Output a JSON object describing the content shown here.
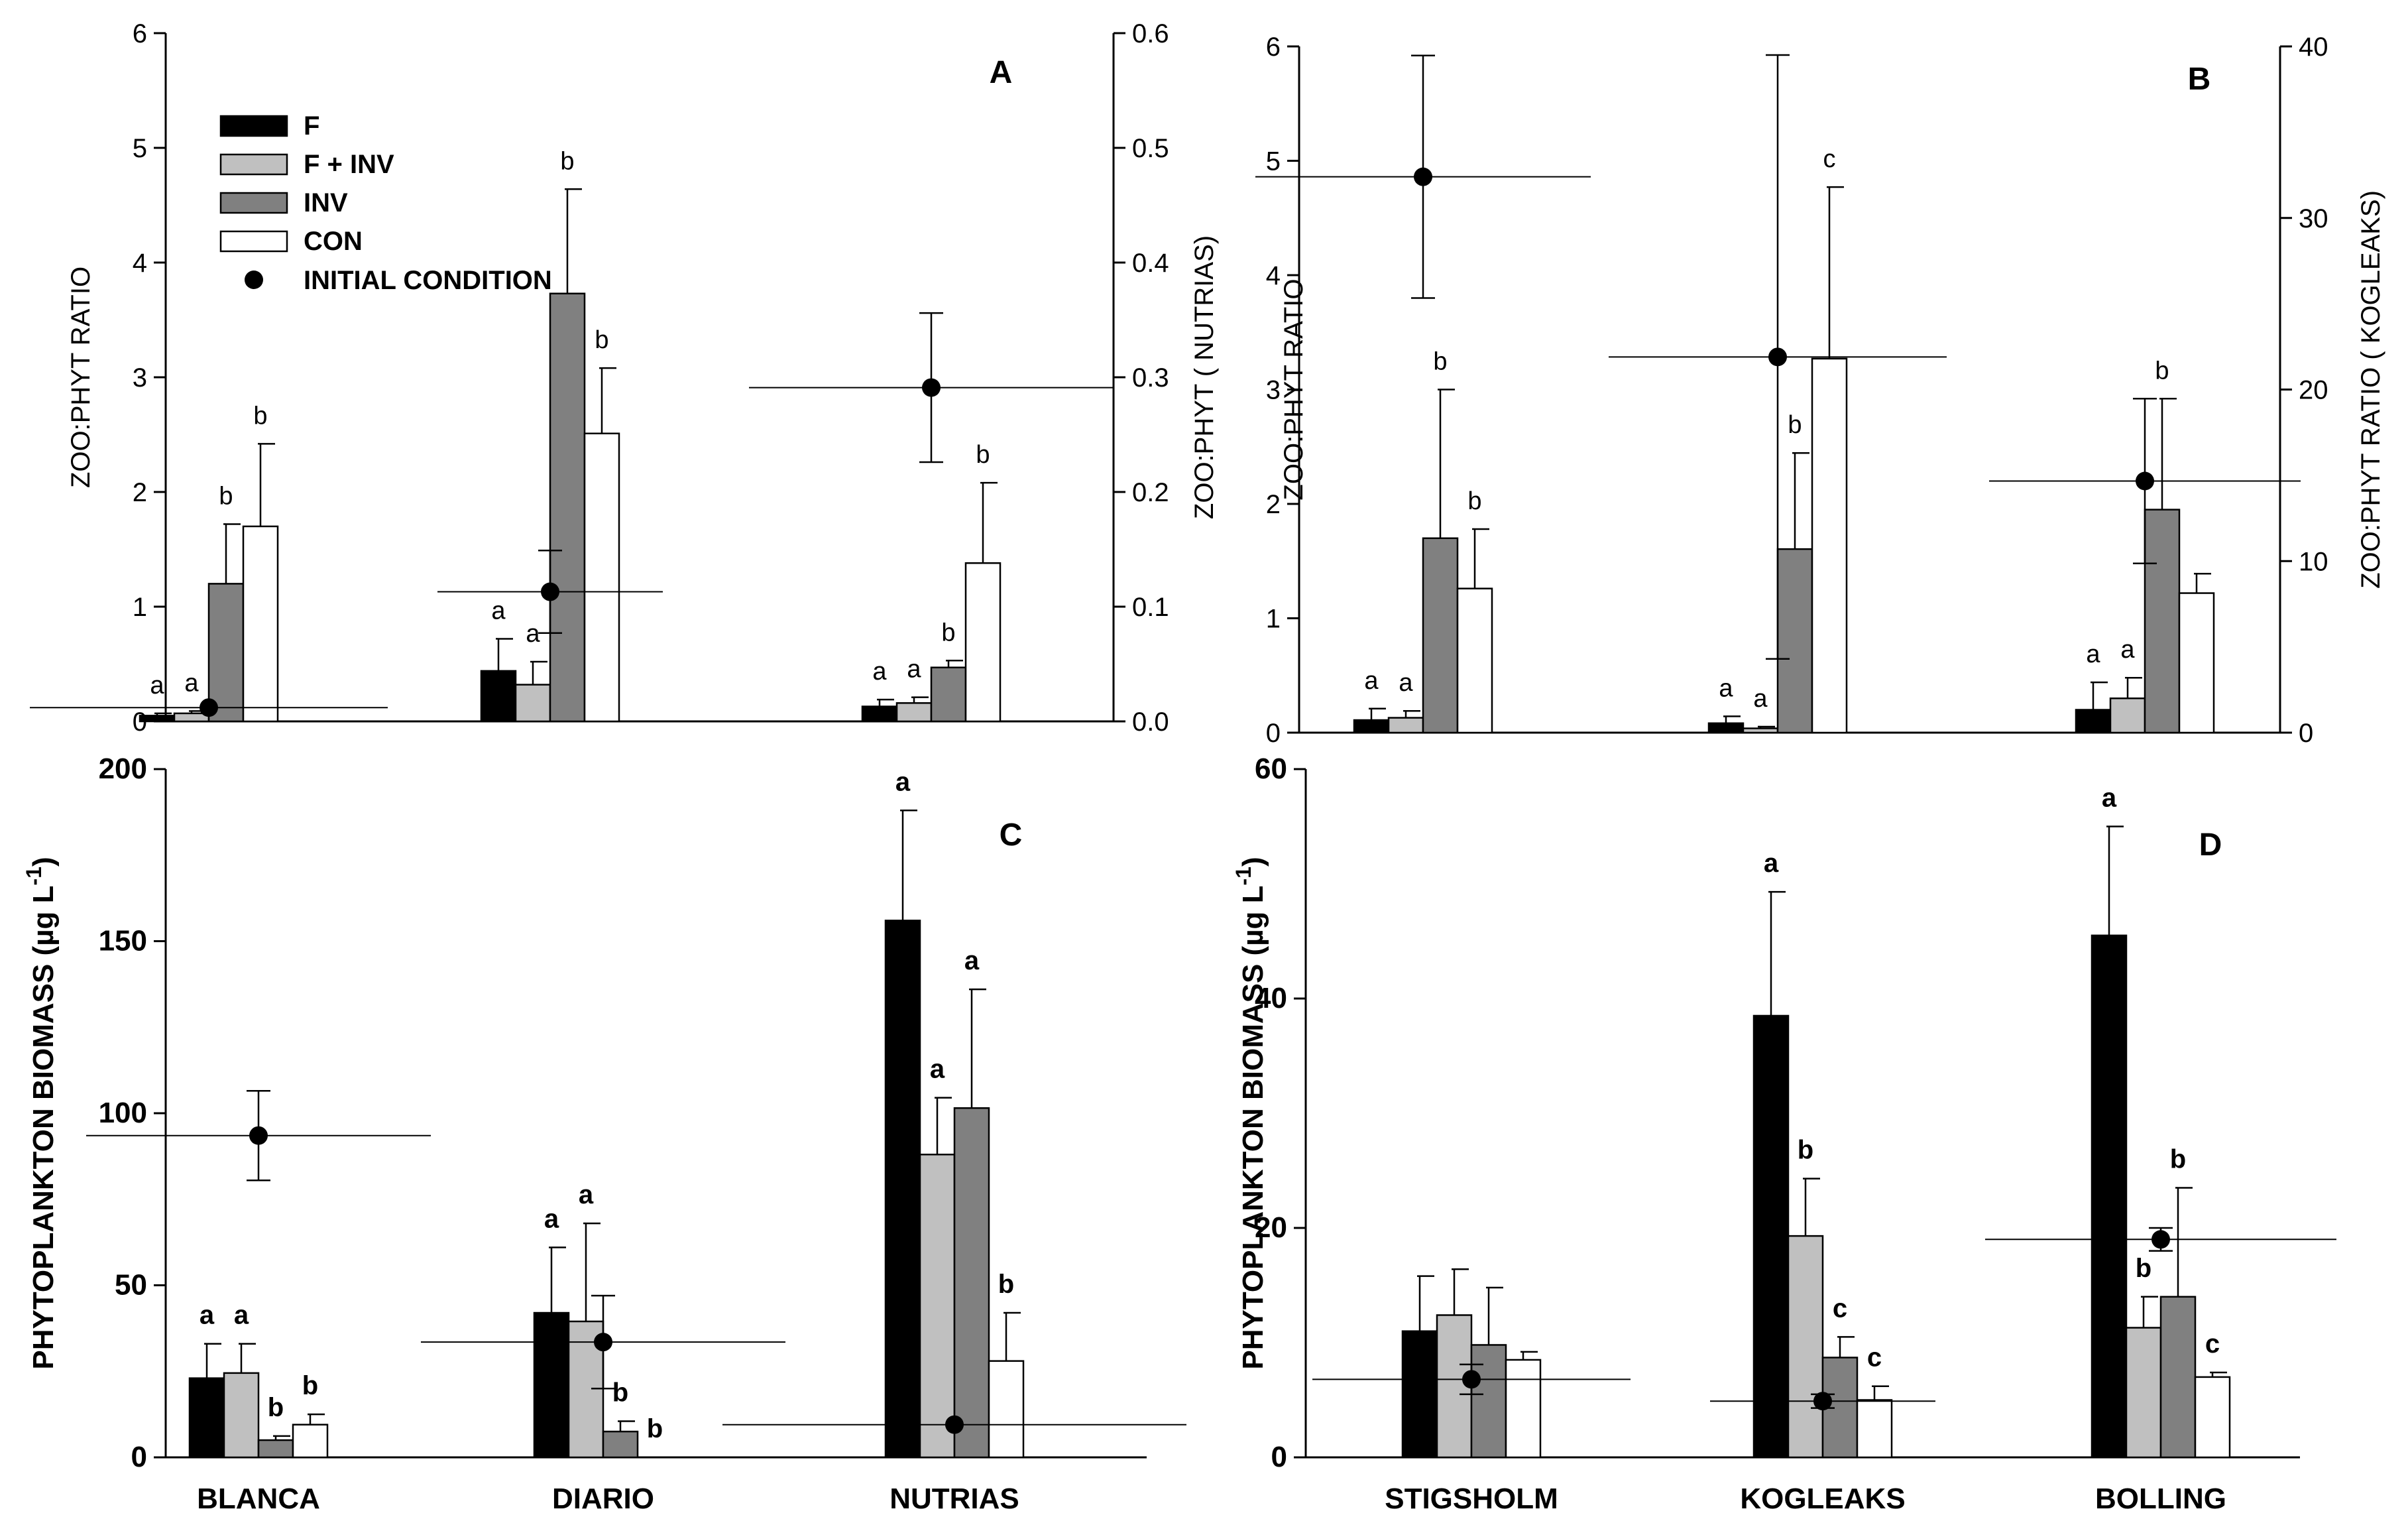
{
  "chart_data": [
    {
      "panel": "A",
      "type": "bar",
      "categories": [
        "BLANCA",
        "DIARIO",
        "NUTRIAS"
      ],
      "ylabel": "ZOO:PHYT RATIO",
      "y2label": "ZOO:PHYT ( NUTRIAS)",
      "ylim": [
        0,
        6
      ],
      "yticks": [
        "0",
        "1",
        "2",
        "3",
        "4",
        "5",
        "6"
      ],
      "y2lim": [
        0,
        0.6
      ],
      "y2ticks": [
        "0.0",
        "0.1",
        "0.2",
        "0.3",
        "0.4",
        "0.5",
        "0.6"
      ],
      "series": [
        {
          "name": "F",
          "color": "#000000",
          "values": [
            0.05,
            0.44,
            0.013
          ],
          "errors": [
            0.02,
            0.28,
            0.006
          ],
          "labels": [
            "a",
            "a",
            "a"
          ]
        },
        {
          "name": "F + INV",
          "color": "#c0c0c0",
          "values": [
            0.07,
            0.32,
            0.016
          ],
          "errors": [
            0.02,
            0.2,
            0.005
          ],
          "labels": [
            "a",
            "a",
            "a"
          ]
        },
        {
          "name": "INV",
          "color": "#808080",
          "values": [
            1.2,
            3.73,
            0.047
          ],
          "errors": [
            0.52,
            0.91,
            0.006
          ],
          "labels": [
            "b",
            "b",
            "b"
          ]
        },
        {
          "name": "CON",
          "color": "#ffffff",
          "values": [
            1.7,
            2.51,
            0.138
          ],
          "errors": [
            0.72,
            0.57,
            0.07
          ],
          "labels": [
            "b",
            "b",
            "b"
          ]
        }
      ],
      "initial": [
        {
          "value": 0.12,
          "error": 0.0
        },
        {
          "value": 1.13,
          "error": 0.36
        },
        {
          "value": 0.291,
          "error": 0.065
        }
      ]
    },
    {
      "panel": "B",
      "type": "bar",
      "categories": [
        "STIGSHOLM",
        "KOGLEAKS",
        "BOLLING"
      ],
      "ylabel": "ZOO:PHYT RATIO",
      "y2label": "ZOO:PHYT RATIO  ( KOGLEAKS)",
      "ylim": [
        0,
        6
      ],
      "yticks": [
        "0",
        "1",
        "2",
        "3",
        "4",
        "5",
        "6"
      ],
      "y2lim": [
        0,
        40
      ],
      "y2ticks": [
        "0",
        "10",
        "20",
        "30",
        "40"
      ],
      "series": [
        {
          "name": "F",
          "color": "#000000",
          "values": [
            0.11,
            0.55,
            0.2
          ],
          "errors": [
            0.1,
            0.4,
            0.24
          ],
          "labels": [
            "a",
            "a",
            "a"
          ]
        },
        {
          "name": "F + INV",
          "color": "#c0c0c0",
          "values": [
            0.13,
            0.25,
            0.3
          ],
          "errors": [
            0.06,
            0.1,
            0.18
          ],
          "labels": [
            "a",
            "a",
            "a"
          ]
        },
        {
          "name": "INV",
          "color": "#808080",
          "values": [
            1.7,
            10.7,
            1.95
          ],
          "errors": [
            1.3,
            5.6,
            0.97
          ],
          "labels": [
            "b",
            "b",
            "b"
          ]
        },
        {
          "name": "CON",
          "color": "#ffffff",
          "values": [
            1.26,
            21.8,
            1.22
          ],
          "errors": [
            0.52,
            10.0,
            0.17
          ],
          "labels": [
            "b",
            "c",
            ""
          ]
        }
      ],
      "initial": [
        {
          "value": 4.86,
          "error": 1.06
        },
        {
          "value": 21.9,
          "error": 17.6
        },
        {
          "value": 2.2,
          "error": 0.72
        }
      ]
    },
    {
      "panel": "C",
      "type": "bar",
      "categories": [
        "BLANCA",
        "DIARIO",
        "NUTRIAS"
      ],
      "ylabel": "PHYTOPLANKTON BIOMASS (µg L-1)",
      "ylim": [
        0,
        200
      ],
      "yticks": [
        "0",
        "50",
        "100",
        "150",
        "200"
      ],
      "series": [
        {
          "name": "F",
          "color": "#000000",
          "values": [
            23,
            42,
            156
          ],
          "errors": [
            10,
            19,
            32
          ],
          "labels": [
            "a",
            "a",
            "a"
          ]
        },
        {
          "name": "F + INV",
          "color": "#c0c0c0",
          "values": [
            24.5,
            39.5,
            88
          ],
          "errors": [
            8.5,
            28.5,
            16.5
          ],
          "labels": [
            "a",
            "a",
            "a"
          ]
        },
        {
          "name": "INV",
          "color": "#808080",
          "values": [
            5,
            7.5,
            101.5
          ],
          "errors": [
            1.2,
            3,
            34.5
          ],
          "labels": [
            "b",
            "b",
            "a"
          ]
        },
        {
          "name": "CON",
          "color": "#ffffff",
          "values": [
            9.5,
            0,
            28
          ],
          "errors": [
            3,
            0,
            14
          ],
          "labels": [
            "b",
            "b",
            "b"
          ]
        }
      ],
      "initial": [
        {
          "value": 93.5,
          "error": 13
        },
        {
          "value": 33.5,
          "error": 13.5
        },
        {
          "value": 9.5,
          "error": 0
        }
      ]
    },
    {
      "panel": "D",
      "type": "bar",
      "categories": [
        "STIGSHOLM",
        "KOGLEAKS",
        "BOLLING"
      ],
      "ylabel": "PHYTOPLANKTON BIOMASS (µg L-1)",
      "ylim": [
        0,
        60
      ],
      "yticks": [
        "0",
        "20",
        "40",
        "60"
      ],
      "series": [
        {
          "name": "F",
          "color": "#000000",
          "values": [
            11,
            38.5,
            45.5
          ],
          "errors": [
            4.8,
            10.8,
            9.5
          ],
          "labels": [
            "",
            "a",
            "a"
          ]
        },
        {
          "name": "F + INV",
          "color": "#c0c0c0",
          "values": [
            12.4,
            19.3,
            11.3
          ],
          "errors": [
            4,
            5,
            2.7
          ],
          "labels": [
            "",
            "b",
            "b"
          ]
        },
        {
          "name": "INV",
          "color": "#808080",
          "values": [
            9.8,
            8.7,
            14
          ],
          "errors": [
            5,
            1.8,
            9.5
          ],
          "labels": [
            "",
            "c",
            "b"
          ]
        },
        {
          "name": "CON",
          "color": "#ffffff",
          "values": [
            8.5,
            5,
            7
          ],
          "errors": [
            0.7,
            1.2,
            0.4
          ],
          "labels": [
            "",
            "c",
            "c"
          ]
        }
      ],
      "initial": [
        {
          "value": 6.8,
          "error": 1.3
        },
        {
          "value": 4.9,
          "error": 0.6
        },
        {
          "value": 19,
          "error": 1
        }
      ]
    }
  ],
  "legend": {
    "items": [
      {
        "label": "F",
        "color": "#000000"
      },
      {
        "label": "F + INV",
        "color": "#c0c0c0"
      },
      {
        "label": "INV",
        "color": "#808080"
      },
      {
        "label": "CON",
        "color": "#ffffff"
      }
    ],
    "initial_label": "INITIAL CONDITION"
  },
  "x_labels": {
    "left": [
      "BLANCA",
      "DIARIO",
      "NUTRIAS"
    ],
    "right": [
      "STIGSHOLM",
      "KOGLEAKS",
      "BOLLING"
    ]
  }
}
